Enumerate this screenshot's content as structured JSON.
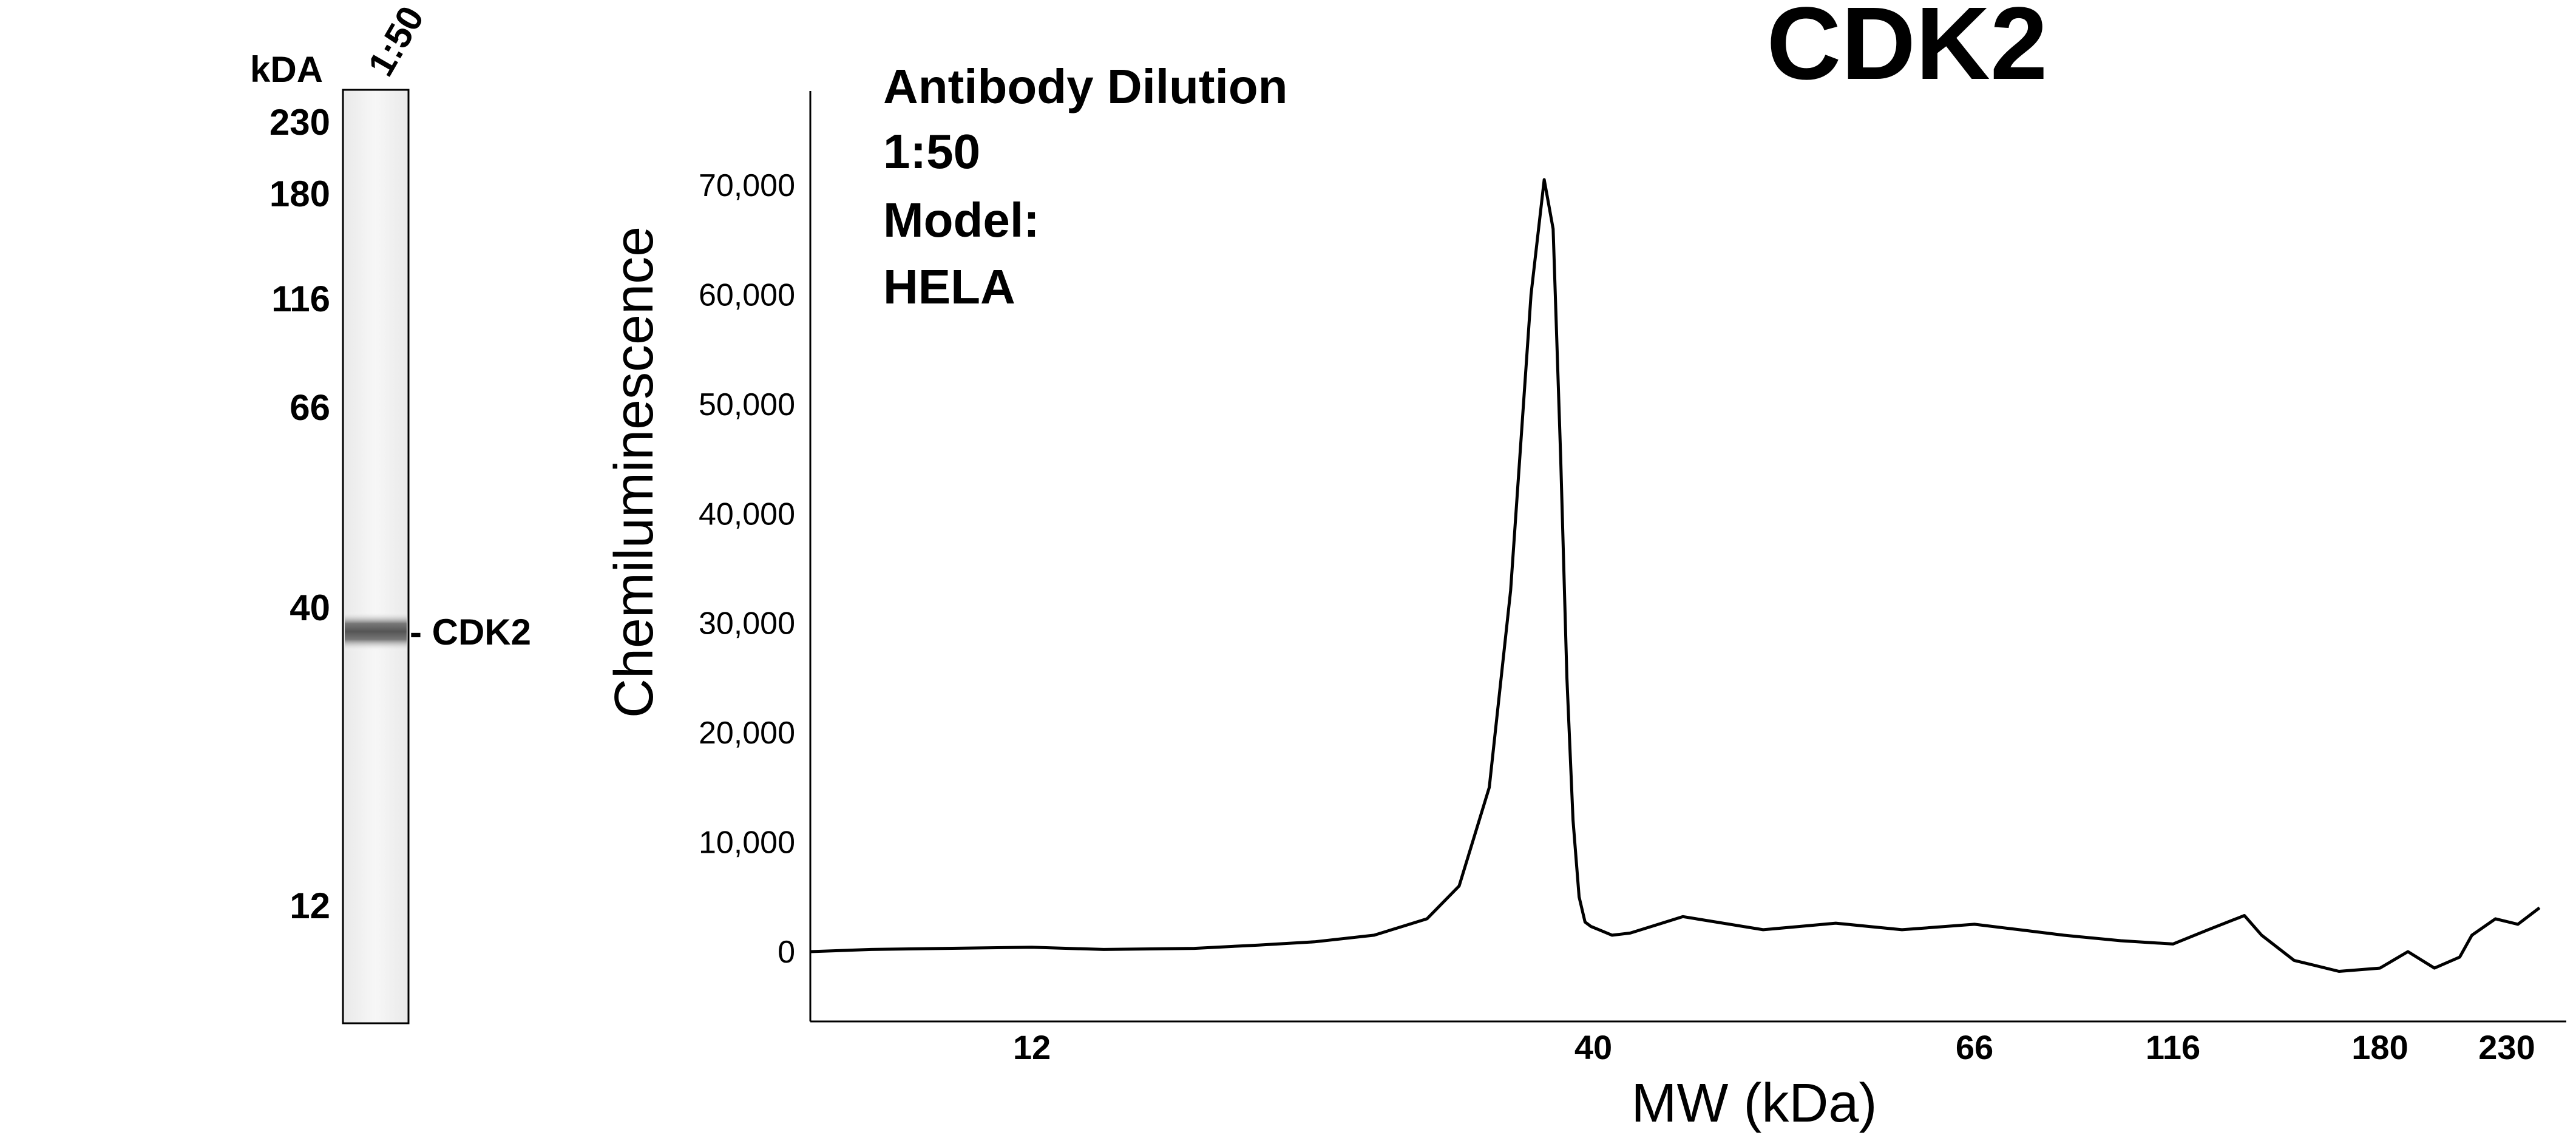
{
  "title": "CDK2",
  "blot": {
    "units_label": "kDA",
    "lane_label": "1:50",
    "markers": [
      "230",
      "180",
      "116",
      "66",
      "40",
      "12"
    ],
    "band_label": "- CDK2"
  },
  "annotation": {
    "line1": "Antibody Dilution",
    "line2": "1:50",
    "line3": "Model:",
    "line4": "HELA"
  },
  "chart_data": {
    "type": "line",
    "title": "CDK2",
    "xlabel": "MW (kDa)",
    "ylabel": "Chemiluminescence",
    "ylim": [
      -6000,
      80000
    ],
    "y_ticks": [
      0,
      10000,
      20000,
      30000,
      40000,
      50000,
      60000,
      70000
    ],
    "y_tick_labels": [
      "0",
      "10,000",
      "20,000",
      "30,000",
      "40,000",
      "50,000",
      "60,000",
      "70,000"
    ],
    "x_ticks": [
      12,
      40,
      66,
      116,
      180,
      230
    ],
    "x_tick_labels": [
      "12",
      "40",
      "66",
      "116",
      "180",
      "230"
    ],
    "x_scale": "log (calibrated to ladder positions)",
    "grid": false,
    "legend": "none",
    "series": [
      {
        "x": [
          7.3,
          8.5,
          10,
          12,
          14,
          17,
          19.5,
          22,
          25,
          28,
          30,
          32,
          33.5,
          35,
          36,
          36.7,
          37.3,
          37.8,
          38.3,
          38.8,
          39.3,
          39.8,
          40.3,
          41,
          42,
          45,
          50,
          55,
          60,
          66,
          75,
          85,
          100,
          116,
          125,
          135,
          140,
          150,
          165,
          180,
          190,
          200,
          210,
          215,
          225,
          235,
          245
        ],
        "y": [
          0,
          200,
          300,
          400,
          200,
          300,
          600,
          900,
          1500,
          3000,
          6000,
          15000,
          33000,
          60000,
          70500,
          66000,
          45000,
          25000,
          12000,
          5000,
          2700,
          2300,
          2000,
          1500,
          1700,
          3200,
          2000,
          2600,
          2000,
          2500,
          2000,
          1500,
          1000,
          700,
          2000,
          3300,
          1500,
          -800,
          -1800,
          -1500,
          0,
          -1500,
          -500,
          1500,
          3000,
          2500,
          4000
        ]
      }
    ]
  }
}
